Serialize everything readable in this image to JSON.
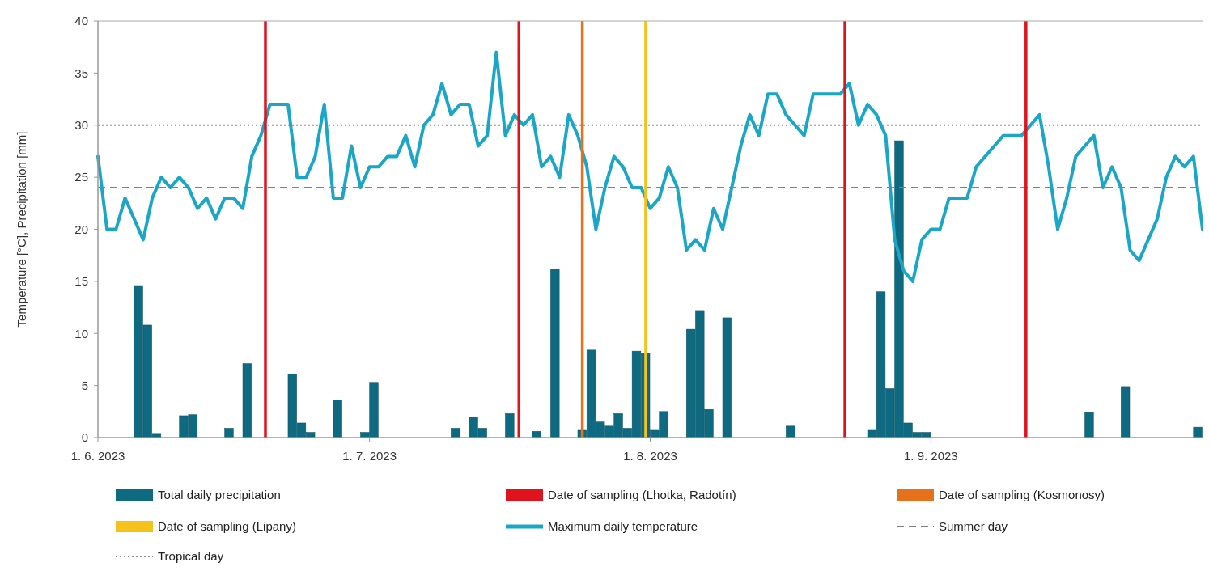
{
  "chart_data": {
    "type": "bar",
    "ylabel": "Temperature [°C], Precipitation [mm]",
    "x": [
      "2023-06-01",
      "2023-06-02",
      "2023-06-03",
      "2023-06-04",
      "2023-06-05",
      "2023-06-06",
      "2023-06-07",
      "2023-06-08",
      "2023-06-09",
      "2023-06-10",
      "2023-06-11",
      "2023-06-12",
      "2023-06-13",
      "2023-06-14",
      "2023-06-15",
      "2023-06-16",
      "2023-06-17",
      "2023-06-18",
      "2023-06-19",
      "2023-06-20",
      "2023-06-21",
      "2023-06-22",
      "2023-06-23",
      "2023-06-24",
      "2023-06-25",
      "2023-06-26",
      "2023-06-27",
      "2023-06-28",
      "2023-06-29",
      "2023-06-30",
      "2023-07-01",
      "2023-07-02",
      "2023-07-03",
      "2023-07-04",
      "2023-07-05",
      "2023-07-06",
      "2023-07-07",
      "2023-07-08",
      "2023-07-09",
      "2023-07-10",
      "2023-07-11",
      "2023-07-12",
      "2023-07-13",
      "2023-07-14",
      "2023-07-15",
      "2023-07-16",
      "2023-07-17",
      "2023-07-18",
      "2023-07-19",
      "2023-07-20",
      "2023-07-21",
      "2023-07-22",
      "2023-07-23",
      "2023-07-24",
      "2023-07-25",
      "2023-07-26",
      "2023-07-27",
      "2023-07-28",
      "2023-07-29",
      "2023-07-30",
      "2023-07-31",
      "2023-08-01",
      "2023-08-02",
      "2023-08-03",
      "2023-08-04",
      "2023-08-05",
      "2023-08-06",
      "2023-08-07",
      "2023-08-08",
      "2023-08-09",
      "2023-08-10",
      "2023-08-11",
      "2023-08-12",
      "2023-08-13",
      "2023-08-14",
      "2023-08-15",
      "2023-08-16",
      "2023-08-17",
      "2023-08-18",
      "2023-08-19",
      "2023-08-20",
      "2023-08-21",
      "2023-08-22",
      "2023-08-23",
      "2023-08-24",
      "2023-08-25",
      "2023-08-26",
      "2023-08-27",
      "2023-08-28",
      "2023-08-29",
      "2023-08-30",
      "2023-08-31",
      "2023-09-01",
      "2023-09-02",
      "2023-09-03",
      "2023-09-04",
      "2023-09-05",
      "2023-09-06",
      "2023-09-07",
      "2023-09-08",
      "2023-09-09",
      "2023-09-10",
      "2023-09-11",
      "2023-09-12",
      "2023-09-13",
      "2023-09-14",
      "2023-09-15",
      "2023-09-16",
      "2023-09-17",
      "2023-09-18",
      "2023-09-19",
      "2023-09-20",
      "2023-09-21",
      "2023-09-22",
      "2023-09-23",
      "2023-09-24",
      "2023-09-25",
      "2023-09-26",
      "2023-09-27",
      "2023-09-28",
      "2023-09-29",
      "2023-09-30",
      "2023-10-01"
    ],
    "series": [
      {
        "name": "Total daily precipitation",
        "color": "#0e6a80",
        "values": [
          null,
          null,
          null,
          null,
          14.6,
          10.8,
          0.4,
          null,
          null,
          2.1,
          2.2,
          null,
          null,
          null,
          0.9,
          null,
          7.1,
          null,
          null,
          null,
          null,
          6.1,
          1.4,
          0.5,
          null,
          null,
          3.6,
          null,
          null,
          0.5,
          5.3,
          null,
          null,
          null,
          null,
          null,
          null,
          null,
          null,
          0.9,
          null,
          2.0,
          0.9,
          null,
          null,
          2.3,
          null,
          null,
          0.6,
          null,
          16.2,
          null,
          null,
          0.7,
          8.4,
          1.5,
          1.1,
          2.3,
          0.9,
          8.3,
          8.1,
          0.7,
          2.5,
          null,
          null,
          10.4,
          12.2,
          2.7,
          null,
          11.5,
          null,
          null,
          null,
          null,
          null,
          null,
          1.1,
          null,
          null,
          null,
          null,
          null,
          null,
          null,
          null,
          0.7,
          14.0,
          4.7,
          28.5,
          1.4,
          0.5,
          0.5,
          null,
          null,
          null,
          null,
          null,
          null,
          null,
          null,
          null,
          null,
          null,
          null,
          null,
          null,
          null,
          null,
          null,
          2.4,
          null,
          null,
          null,
          4.9,
          null,
          null,
          null,
          null,
          null,
          null,
          null,
          1.0,
          null
        ]
      },
      {
        "type": "line",
        "name": "Maximum daily temperature",
        "color": "#1aa7c7",
        "values": [
          27,
          20,
          20,
          23,
          21,
          19,
          23,
          25,
          24,
          25,
          24,
          22,
          23,
          21,
          23,
          23,
          22,
          27,
          29,
          32,
          32,
          32,
          25,
          25,
          27,
          32,
          23,
          23,
          28,
          24,
          26,
          26,
          27,
          27,
          29,
          26,
          30,
          31,
          34,
          31,
          32,
          32,
          28,
          29,
          37,
          29,
          31,
          30,
          31,
          26,
          27,
          25,
          31,
          29,
          26,
          20,
          24,
          27,
          26,
          24,
          24,
          22,
          23,
          26,
          24,
          18,
          19,
          18,
          22,
          20,
          24,
          28,
          31,
          29,
          33,
          33,
          31,
          30,
          29,
          33,
          33,
          33,
          33,
          34,
          30,
          32,
          31,
          29,
          19,
          16,
          15,
          19,
          20,
          20,
          23,
          23,
          23,
          26,
          27,
          28,
          29,
          29,
          29,
          30,
          31,
          26,
          20,
          23,
          27,
          28,
          29,
          24,
          26,
          24,
          18,
          17,
          19,
          21,
          25,
          27,
          26,
          27,
          20
        ]
      }
    ],
    "xlim": [
      "2023-06-01",
      "2023-10-01"
    ],
    "xticks": [
      {
        "value": "2023-06-01",
        "label": "1. 6. 2023"
      },
      {
        "value": "2023-07-01",
        "label": "1. 7. 2023"
      },
      {
        "value": "2023-08-01",
        "label": "1. 8. 2023"
      },
      {
        "value": "2023-09-01",
        "label": "1. 9. 2023"
      }
    ],
    "ylim": [
      0,
      40
    ],
    "yticks": [
      0,
      5,
      10,
      15,
      20,
      25,
      30,
      35,
      40
    ],
    "ref_lines": [
      {
        "axis": "x",
        "value": "2023-06-19T12:00",
        "label": "Date of sampling (Lhotka, Radotín)",
        "color": "#e0121b"
      },
      {
        "axis": "x",
        "value": "2023-07-17T12:00",
        "color": "#e0121b"
      },
      {
        "axis": "x",
        "value": "2023-08-22T12:00",
        "color": "#e0121b"
      },
      {
        "axis": "x",
        "value": "2023-09-11T12:00",
        "color": "#e0121b"
      },
      {
        "axis": "x",
        "value": "2023-07-24T12:00",
        "label": "Date of sampling (Kosmonosy)",
        "color": "#e5711b"
      },
      {
        "axis": "x",
        "value": "2023-07-31T12:00",
        "label": "Date of sampling (Lipany)",
        "color": "#f5c21b"
      },
      {
        "axis": "y",
        "value": 24,
        "label": "Summer day",
        "color": "#808080",
        "line_style": "dashed"
      },
      {
        "axis": "y",
        "value": 30,
        "label": "Tropical day",
        "color": "#909090",
        "line_style": "dotted"
      }
    ],
    "grid": false,
    "legend": "bottom"
  }
}
